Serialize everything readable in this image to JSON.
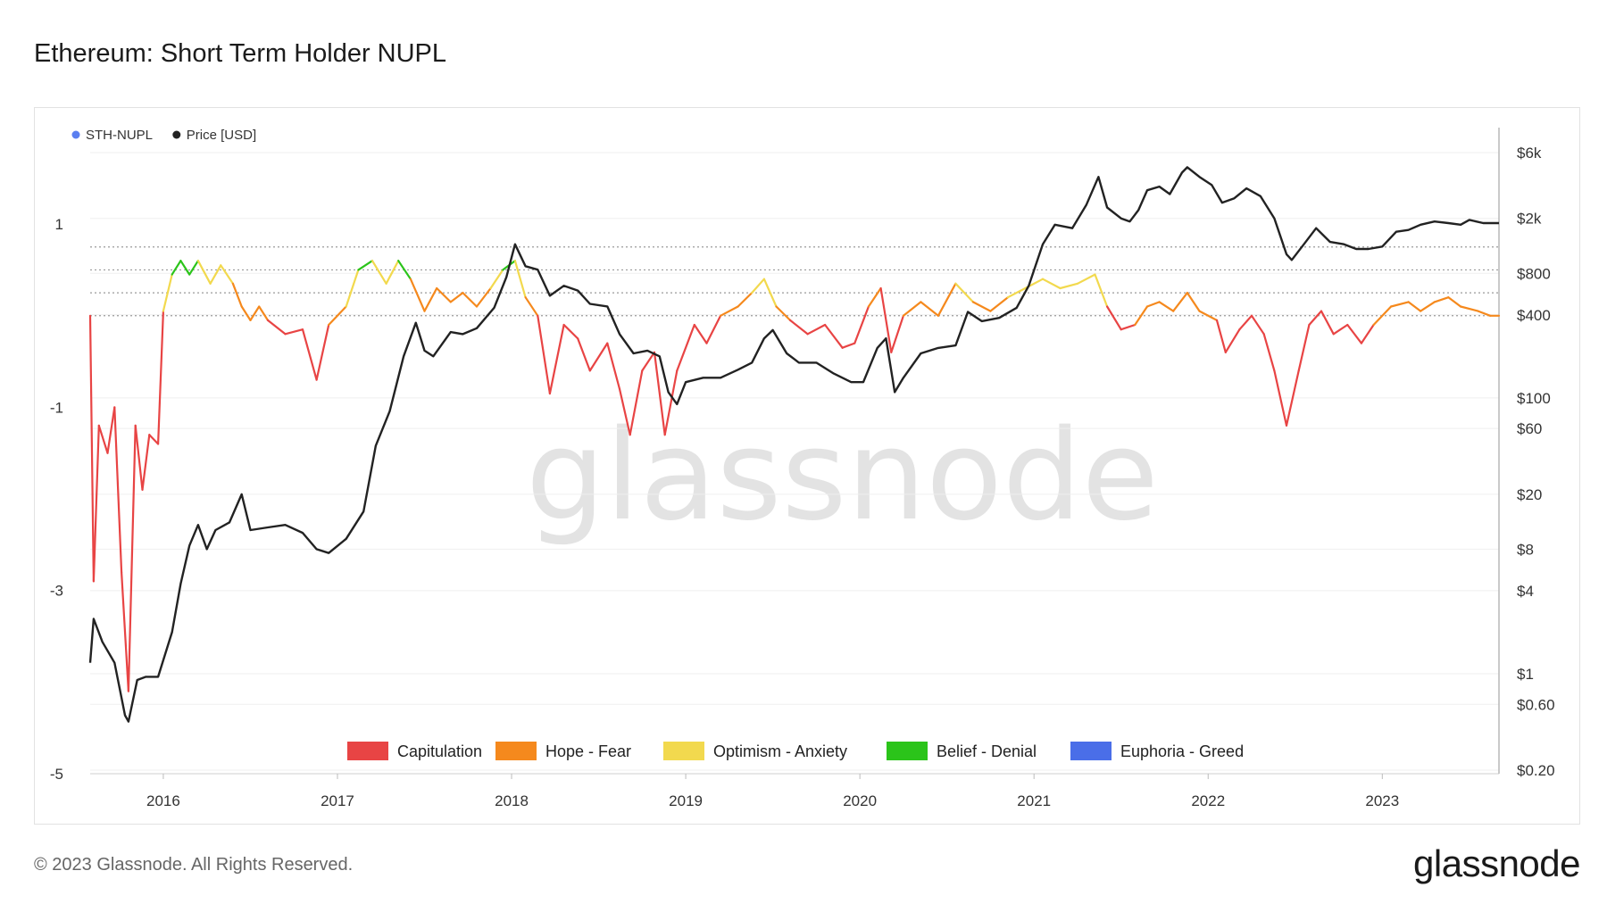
{
  "page": {
    "title": "Ethereum: Short Term Holder NUPL",
    "watermark": "glassnode",
    "footer_copyright": "© 2023 Glassnode. All Rights Reserved.",
    "footer_logo": "glassnode"
  },
  "chart_data": {
    "type": "line",
    "title": "Ethereum: Short Term Holder NUPL",
    "legend_top": [
      {
        "name": "STH-NUPL",
        "color": "#5b7ff0"
      },
      {
        "name": "Price [USD]",
        "color": "#222222"
      }
    ],
    "legend_bottom": [
      {
        "name": "Capitulation",
        "color": "#e84444"
      },
      {
        "name": "Hope - Fear",
        "color": "#f5891d"
      },
      {
        "name": "Optimism - Anxiety",
        "color": "#f2d94e"
      },
      {
        "name": "Belief - Denial",
        "color": "#2bc41a"
      },
      {
        "name": "Euphoria - Greed",
        "color": "#4a6ee8"
      }
    ],
    "x_ticks": [
      "2016",
      "2017",
      "2018",
      "2019",
      "2020",
      "2021",
      "2022",
      "2023"
    ],
    "x_range": [
      2015.58,
      2023.67
    ],
    "left_axis": {
      "ticks": [
        "1",
        "-1",
        "-3",
        "-5"
      ],
      "range": [
        -5,
        1.8
      ]
    },
    "right_axis": {
      "scale": "log",
      "ticks": [
        "$6k",
        "$2k",
        "$800",
        "$400",
        "$100",
        "$60",
        "$20",
        "$8",
        "$4",
        "$1",
        "$0.60",
        "$0.20"
      ]
    },
    "zone_thresholds": [
      0,
      0.25,
      0.5,
      0.75
    ],
    "series": [
      {
        "name": "STH-NUPL",
        "axis": "left",
        "points": [
          [
            2015.58,
            0.0
          ],
          [
            2015.6,
            -2.9
          ],
          [
            2015.63,
            -1.2
          ],
          [
            2015.68,
            -1.5
          ],
          [
            2015.72,
            -1.0
          ],
          [
            2015.76,
            -2.8
          ],
          [
            2015.8,
            -4.1
          ],
          [
            2015.84,
            -1.2
          ],
          [
            2015.88,
            -1.9
          ],
          [
            2015.92,
            -1.3
          ],
          [
            2015.97,
            -1.4
          ],
          [
            2016.0,
            0.05
          ],
          [
            2016.05,
            0.45
          ],
          [
            2016.1,
            0.6
          ],
          [
            2016.15,
            0.45
          ],
          [
            2016.2,
            0.6
          ],
          [
            2016.27,
            0.35
          ],
          [
            2016.33,
            0.55
          ],
          [
            2016.4,
            0.35
          ],
          [
            2016.45,
            0.1
          ],
          [
            2016.5,
            -0.05
          ],
          [
            2016.55,
            0.1
          ],
          [
            2016.6,
            -0.05
          ],
          [
            2016.7,
            -0.2
          ],
          [
            2016.8,
            -0.15
          ],
          [
            2016.88,
            -0.7
          ],
          [
            2016.95,
            -0.1
          ],
          [
            2017.05,
            0.1
          ],
          [
            2017.12,
            0.5
          ],
          [
            2017.2,
            0.6
          ],
          [
            2017.28,
            0.35
          ],
          [
            2017.35,
            0.6
          ],
          [
            2017.42,
            0.4
          ],
          [
            2017.5,
            0.05
          ],
          [
            2017.57,
            0.3
          ],
          [
            2017.65,
            0.15
          ],
          [
            2017.72,
            0.25
          ],
          [
            2017.8,
            0.1
          ],
          [
            2017.88,
            0.3
          ],
          [
            2017.95,
            0.5
          ],
          [
            2018.02,
            0.6
          ],
          [
            2018.08,
            0.2
          ],
          [
            2018.15,
            0.0
          ],
          [
            2018.22,
            -0.85
          ],
          [
            2018.3,
            -0.1
          ],
          [
            2018.38,
            -0.25
          ],
          [
            2018.45,
            -0.6
          ],
          [
            2018.55,
            -0.3
          ],
          [
            2018.62,
            -0.8
          ],
          [
            2018.68,
            -1.3
          ],
          [
            2018.75,
            -0.6
          ],
          [
            2018.82,
            -0.4
          ],
          [
            2018.88,
            -1.3
          ],
          [
            2018.95,
            -0.6
          ],
          [
            2019.05,
            -0.1
          ],
          [
            2019.12,
            -0.3
          ],
          [
            2019.2,
            0.0
          ],
          [
            2019.3,
            0.1
          ],
          [
            2019.38,
            0.25
          ],
          [
            2019.45,
            0.4
          ],
          [
            2019.52,
            0.1
          ],
          [
            2019.6,
            -0.05
          ],
          [
            2019.7,
            -0.2
          ],
          [
            2019.8,
            -0.1
          ],
          [
            2019.9,
            -0.35
          ],
          [
            2019.97,
            -0.3
          ],
          [
            2020.05,
            0.1
          ],
          [
            2020.12,
            0.3
          ],
          [
            2020.18,
            -0.4
          ],
          [
            2020.25,
            0.0
          ],
          [
            2020.35,
            0.15
          ],
          [
            2020.45,
            0.0
          ],
          [
            2020.55,
            0.35
          ],
          [
            2020.65,
            0.15
          ],
          [
            2020.75,
            0.05
          ],
          [
            2020.85,
            0.2
          ],
          [
            2020.95,
            0.3
          ],
          [
            2021.05,
            0.4
          ],
          [
            2021.15,
            0.3
          ],
          [
            2021.25,
            0.35
          ],
          [
            2021.35,
            0.45
          ],
          [
            2021.42,
            0.1
          ],
          [
            2021.5,
            -0.15
          ],
          [
            2021.58,
            -0.1
          ],
          [
            2021.65,
            0.1
          ],
          [
            2021.72,
            0.15
          ],
          [
            2021.8,
            0.05
          ],
          [
            2021.88,
            0.25
          ],
          [
            2021.95,
            0.05
          ],
          [
            2022.05,
            -0.05
          ],
          [
            2022.1,
            -0.4
          ],
          [
            2022.18,
            -0.15
          ],
          [
            2022.25,
            0.0
          ],
          [
            2022.32,
            -0.2
          ],
          [
            2022.38,
            -0.6
          ],
          [
            2022.45,
            -1.2
          ],
          [
            2022.52,
            -0.6
          ],
          [
            2022.58,
            -0.1
          ],
          [
            2022.65,
            0.05
          ],
          [
            2022.72,
            -0.2
          ],
          [
            2022.8,
            -0.1
          ],
          [
            2022.88,
            -0.3
          ],
          [
            2022.95,
            -0.1
          ],
          [
            2023.05,
            0.1
          ],
          [
            2023.15,
            0.15
          ],
          [
            2023.22,
            0.05
          ],
          [
            2023.3,
            0.15
          ],
          [
            2023.38,
            0.2
          ],
          [
            2023.45,
            0.1
          ],
          [
            2023.55,
            0.05
          ],
          [
            2023.62,
            0.0
          ],
          [
            2023.67,
            0.0
          ]
        ]
      },
      {
        "name": "Price [USD]",
        "axis": "right",
        "color": "#222222",
        "points": [
          [
            2015.58,
            1.2
          ],
          [
            2015.6,
            2.5
          ],
          [
            2015.65,
            1.7
          ],
          [
            2015.72,
            1.2
          ],
          [
            2015.78,
            0.5
          ],
          [
            2015.8,
            0.45
          ],
          [
            2015.85,
            0.9
          ],
          [
            2015.9,
            0.95
          ],
          [
            2015.97,
            0.95
          ],
          [
            2016.05,
            2.0
          ],
          [
            2016.1,
            4.5
          ],
          [
            2016.15,
            8.5
          ],
          [
            2016.2,
            12.0
          ],
          [
            2016.25,
            8.0
          ],
          [
            2016.3,
            11.0
          ],
          [
            2016.38,
            12.5
          ],
          [
            2016.45,
            20.0
          ],
          [
            2016.5,
            11.0
          ],
          [
            2016.6,
            11.5
          ],
          [
            2016.7,
            12.0
          ],
          [
            2016.8,
            10.5
          ],
          [
            2016.88,
            8.0
          ],
          [
            2016.95,
            7.5
          ],
          [
            2017.05,
            9.5
          ],
          [
            2017.15,
            15.0
          ],
          [
            2017.22,
            45.0
          ],
          [
            2017.3,
            80.0
          ],
          [
            2017.38,
            200.0
          ],
          [
            2017.45,
            350.0
          ],
          [
            2017.5,
            220.0
          ],
          [
            2017.55,
            200.0
          ],
          [
            2017.65,
            300.0
          ],
          [
            2017.72,
            290.0
          ],
          [
            2017.8,
            320.0
          ],
          [
            2017.9,
            450.0
          ],
          [
            2017.97,
            750.0
          ],
          [
            2018.02,
            1300.0
          ],
          [
            2018.08,
            900.0
          ],
          [
            2018.15,
            850.0
          ],
          [
            2018.22,
            550.0
          ],
          [
            2018.3,
            650.0
          ],
          [
            2018.38,
            600.0
          ],
          [
            2018.45,
            480.0
          ],
          [
            2018.55,
            460.0
          ],
          [
            2018.62,
            290.0
          ],
          [
            2018.7,
            210.0
          ],
          [
            2018.78,
            220.0
          ],
          [
            2018.85,
            200.0
          ],
          [
            2018.9,
            110.0
          ],
          [
            2018.95,
            90.0
          ],
          [
            2019.0,
            130.0
          ],
          [
            2019.1,
            140.0
          ],
          [
            2019.2,
            140.0
          ],
          [
            2019.3,
            160.0
          ],
          [
            2019.38,
            180.0
          ],
          [
            2019.45,
            270.0
          ],
          [
            2019.5,
            310.0
          ],
          [
            2019.58,
            210.0
          ],
          [
            2019.65,
            180.0
          ],
          [
            2019.75,
            180.0
          ],
          [
            2019.85,
            150.0
          ],
          [
            2019.95,
            130.0
          ],
          [
            2020.02,
            130.0
          ],
          [
            2020.1,
            230.0
          ],
          [
            2020.15,
            270.0
          ],
          [
            2020.2,
            110.0
          ],
          [
            2020.25,
            140.0
          ],
          [
            2020.35,
            210.0
          ],
          [
            2020.45,
            230.0
          ],
          [
            2020.55,
            240.0
          ],
          [
            2020.62,
            420.0
          ],
          [
            2020.7,
            360.0
          ],
          [
            2020.8,
            380.0
          ],
          [
            2020.9,
            450.0
          ],
          [
            2020.97,
            650.0
          ],
          [
            2021.05,
            1300.0
          ],
          [
            2021.12,
            1800.0
          ],
          [
            2021.22,
            1700.0
          ],
          [
            2021.3,
            2500.0
          ],
          [
            2021.37,
            4000.0
          ],
          [
            2021.42,
            2400.0
          ],
          [
            2021.5,
            2000.0
          ],
          [
            2021.55,
            1900.0
          ],
          [
            2021.6,
            2300.0
          ],
          [
            2021.65,
            3200.0
          ],
          [
            2021.72,
            3400.0
          ],
          [
            2021.78,
            3000.0
          ],
          [
            2021.85,
            4300.0
          ],
          [
            2021.88,
            4700.0
          ],
          [
            2021.95,
            4000.0
          ],
          [
            2022.02,
            3500.0
          ],
          [
            2022.08,
            2600.0
          ],
          [
            2022.15,
            2800.0
          ],
          [
            2022.22,
            3300.0
          ],
          [
            2022.3,
            2900.0
          ],
          [
            2022.38,
            2000.0
          ],
          [
            2022.45,
            1100.0
          ],
          [
            2022.48,
            1000.0
          ],
          [
            2022.55,
            1300.0
          ],
          [
            2022.62,
            1700.0
          ],
          [
            2022.7,
            1350.0
          ],
          [
            2022.78,
            1300.0
          ],
          [
            2022.85,
            1200.0
          ],
          [
            2022.92,
            1200.0
          ],
          [
            2023.0,
            1250.0
          ],
          [
            2023.08,
            1600.0
          ],
          [
            2023.15,
            1650.0
          ],
          [
            2023.22,
            1800.0
          ],
          [
            2023.3,
            1900.0
          ],
          [
            2023.38,
            1850.0
          ],
          [
            2023.45,
            1800.0
          ],
          [
            2023.5,
            1950.0
          ],
          [
            2023.58,
            1850.0
          ],
          [
            2023.67,
            1850.0
          ]
        ]
      }
    ]
  }
}
